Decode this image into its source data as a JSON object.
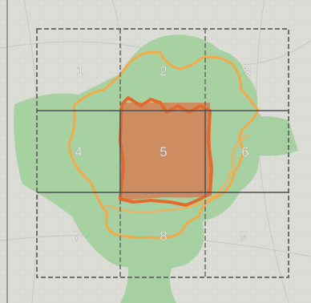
{
  "map": {
    "grid_cells": [
      {
        "label": "1"
      },
      {
        "label": "2"
      },
      {
        "label": "3"
      },
      {
        "label": "4"
      },
      {
        "label": "5"
      },
      {
        "label": "6"
      },
      {
        "label": "7"
      },
      {
        "label": "8"
      },
      {
        "label": "9"
      }
    ],
    "highlighted_cell": "5",
    "colors": {
      "map_background": "#dcdcd6",
      "green_area": "#9fcf9a",
      "boundary_line": "#f0a640",
      "highlight_fill": "#d97a4e",
      "grid_dashed": "#6f6f6f",
      "grid_solid": "#4d4d56",
      "label_text": "#ffffff"
    }
  }
}
